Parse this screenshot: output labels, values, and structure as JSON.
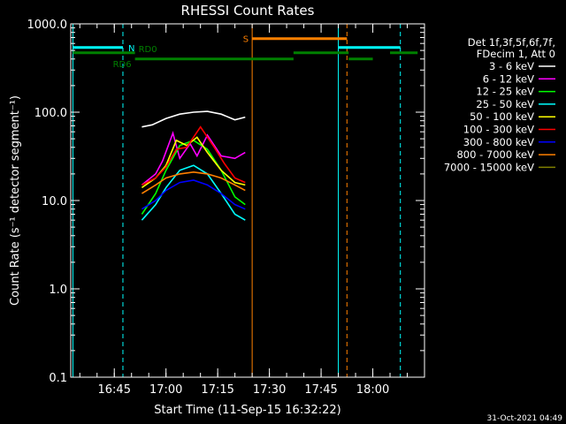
{
  "chart_data": {
    "type": "line",
    "title": "RHESSI Count Rates",
    "xlabel": "Start Time (11-Sep-15 16:32:22)",
    "ylabel": "Count Rate (s⁻¹ detector segment⁻¹)",
    "xscale": "time",
    "yscale": "log",
    "xlim": [
      "16:32:22",
      "18:15:00"
    ],
    "ylim": [
      0.1,
      1000
    ],
    "x_ticks": [
      "16:45",
      "17:00",
      "17:15",
      "17:30",
      "17:45",
      "18:00"
    ],
    "y_ticks": [
      "0.1",
      "1.0",
      "10.0",
      "100.0",
      "1000.0"
    ],
    "grid": false,
    "legend_position": "top-right",
    "legend_header": [
      "Det 1f,3f,5f,6f,7f,",
      "FDecim 1, Att 0"
    ],
    "series": [
      {
        "name": "3 - 6 keV",
        "color": "#ffffff",
        "x": [
          "16:53:00",
          "16:56:00",
          "17:00:00",
          "17:04:00",
          "17:08:00",
          "17:12:00",
          "17:16:00",
          "17:20:00",
          "17:23:00"
        ],
        "values": [
          68,
          72,
          85,
          95,
          100,
          102,
          95,
          82,
          88
        ]
      },
      {
        "name": "6 - 12 keV",
        "color": "#ff00ff",
        "x": [
          "16:53:00",
          "16:57:00",
          "16:59:00",
          "17:02:00",
          "17:04:00",
          "17:07:00",
          "17:09:00",
          "17:12:00",
          "17:16:00",
          "17:20:00",
          "17:23:00"
        ],
        "values": [
          15,
          20,
          28,
          58,
          30,
          44,
          32,
          55,
          32,
          30,
          35
        ]
      },
      {
        "name": "12 - 25 keV",
        "color": "#00ff00",
        "x": [
          "16:53:00",
          "16:57:00",
          "17:00:00",
          "17:04:00",
          "17:08:00",
          "17:12:00",
          "17:16:00",
          "17:20:00",
          "17:23:00"
        ],
        "values": [
          7,
          12,
          22,
          42,
          48,
          38,
          22,
          11,
          9
        ]
      },
      {
        "name": "25 - 50 keV",
        "color": "#00ffff",
        "x": [
          "16:53:00",
          "16:57:00",
          "17:00:00",
          "17:04:00",
          "17:08:00",
          "17:12:00",
          "17:16:00",
          "17:20:00",
          "17:23:00"
        ],
        "values": [
          6,
          9,
          14,
          22,
          25,
          20,
          12,
          7,
          6
        ]
      },
      {
        "name": "50 - 100 keV",
        "color": "#ffff00",
        "x": [
          "16:53:00",
          "16:57:00",
          "17:00:00",
          "17:03:00",
          "17:06:00",
          "17:09:00",
          "17:12:00",
          "17:16:00",
          "17:20:00",
          "17:23:00"
        ],
        "values": [
          14,
          18,
          25,
          48,
          42,
          52,
          35,
          22,
          16,
          15
        ]
      },
      {
        "name": "100 - 300 keV",
        "color": "#ff0000",
        "x": [
          "16:53:00",
          "16:57:00",
          "17:00:00",
          "17:03:00",
          "17:06:00",
          "17:10:00",
          "17:14:00",
          "17:17:00",
          "17:20:00",
          "17:23:00"
        ],
        "values": [
          15,
          18,
          24,
          38,
          40,
          68,
          40,
          26,
          18,
          16
        ]
      },
      {
        "name": "300 - 800 keV",
        "color": "#0000ff",
        "x": [
          "16:53:00",
          "16:57:00",
          "17:00:00",
          "17:04:00",
          "17:08:00",
          "17:12:00",
          "17:16:00",
          "17:20:00",
          "17:23:00"
        ],
        "values": [
          8,
          10,
          13,
          16,
          17,
          15,
          12,
          9,
          8
        ]
      },
      {
        "name": "800 - 7000 keV",
        "color": "#ff8000",
        "x": [
          "16:53:00",
          "16:57:00",
          "17:00:00",
          "17:04:00",
          "17:08:00",
          "17:12:00",
          "17:16:00",
          "17:20:00",
          "17:23:00"
        ],
        "values": [
          12,
          15,
          18,
          20,
          21,
          20,
          18,
          15,
          13
        ]
      },
      {
        "name": "7000 - 15000 keV",
        "color": "#808000",
        "x": [],
        "values": []
      }
    ],
    "vertical_lines": [
      {
        "x": "16:33:00",
        "color": "#00ffff",
        "style": "solid"
      },
      {
        "x": "16:47:30",
        "color": "#00ffff",
        "style": "dashed"
      },
      {
        "x": "17:25:00",
        "color": "#ff8000",
        "style": "solid"
      },
      {
        "x": "17:50:00",
        "color": "#00ffff",
        "style": "solid"
      },
      {
        "x": "17:52:30",
        "color": "#ff8000",
        "style": "dashed"
      },
      {
        "x": "18:08:00",
        "color": "#00ffff",
        "style": "dashed"
      }
    ],
    "state_bars": [
      {
        "label": "N",
        "color": "#00ffff",
        "level": 540,
        "spans": [
          [
            "16:33:00",
            "16:47:30"
          ],
          [
            "17:50:00",
            "18:08:00"
          ]
        ]
      },
      {
        "label": "S",
        "color": "#ff8000",
        "level": 680,
        "spans": [
          [
            "17:25:00",
            "17:52:30"
          ]
        ]
      },
      {
        "label": "RD0",
        "color": "#008000",
        "level": 470,
        "spans": [
          [
            "16:33:00",
            "16:51:00"
          ],
          [
            "17:37:00",
            "17:53:00"
          ],
          [
            "18:05:00",
            "18:13:00"
          ]
        ]
      },
      {
        "label": "RD6",
        "color": "#008000",
        "level": 400,
        "spans": [
          [
            "16:51:00",
            "17:37:00"
          ],
          [
            "17:53:00",
            "18:00:00"
          ]
        ]
      }
    ]
  },
  "footer": {
    "timestamp": "31-Oct-2021 04:49"
  }
}
